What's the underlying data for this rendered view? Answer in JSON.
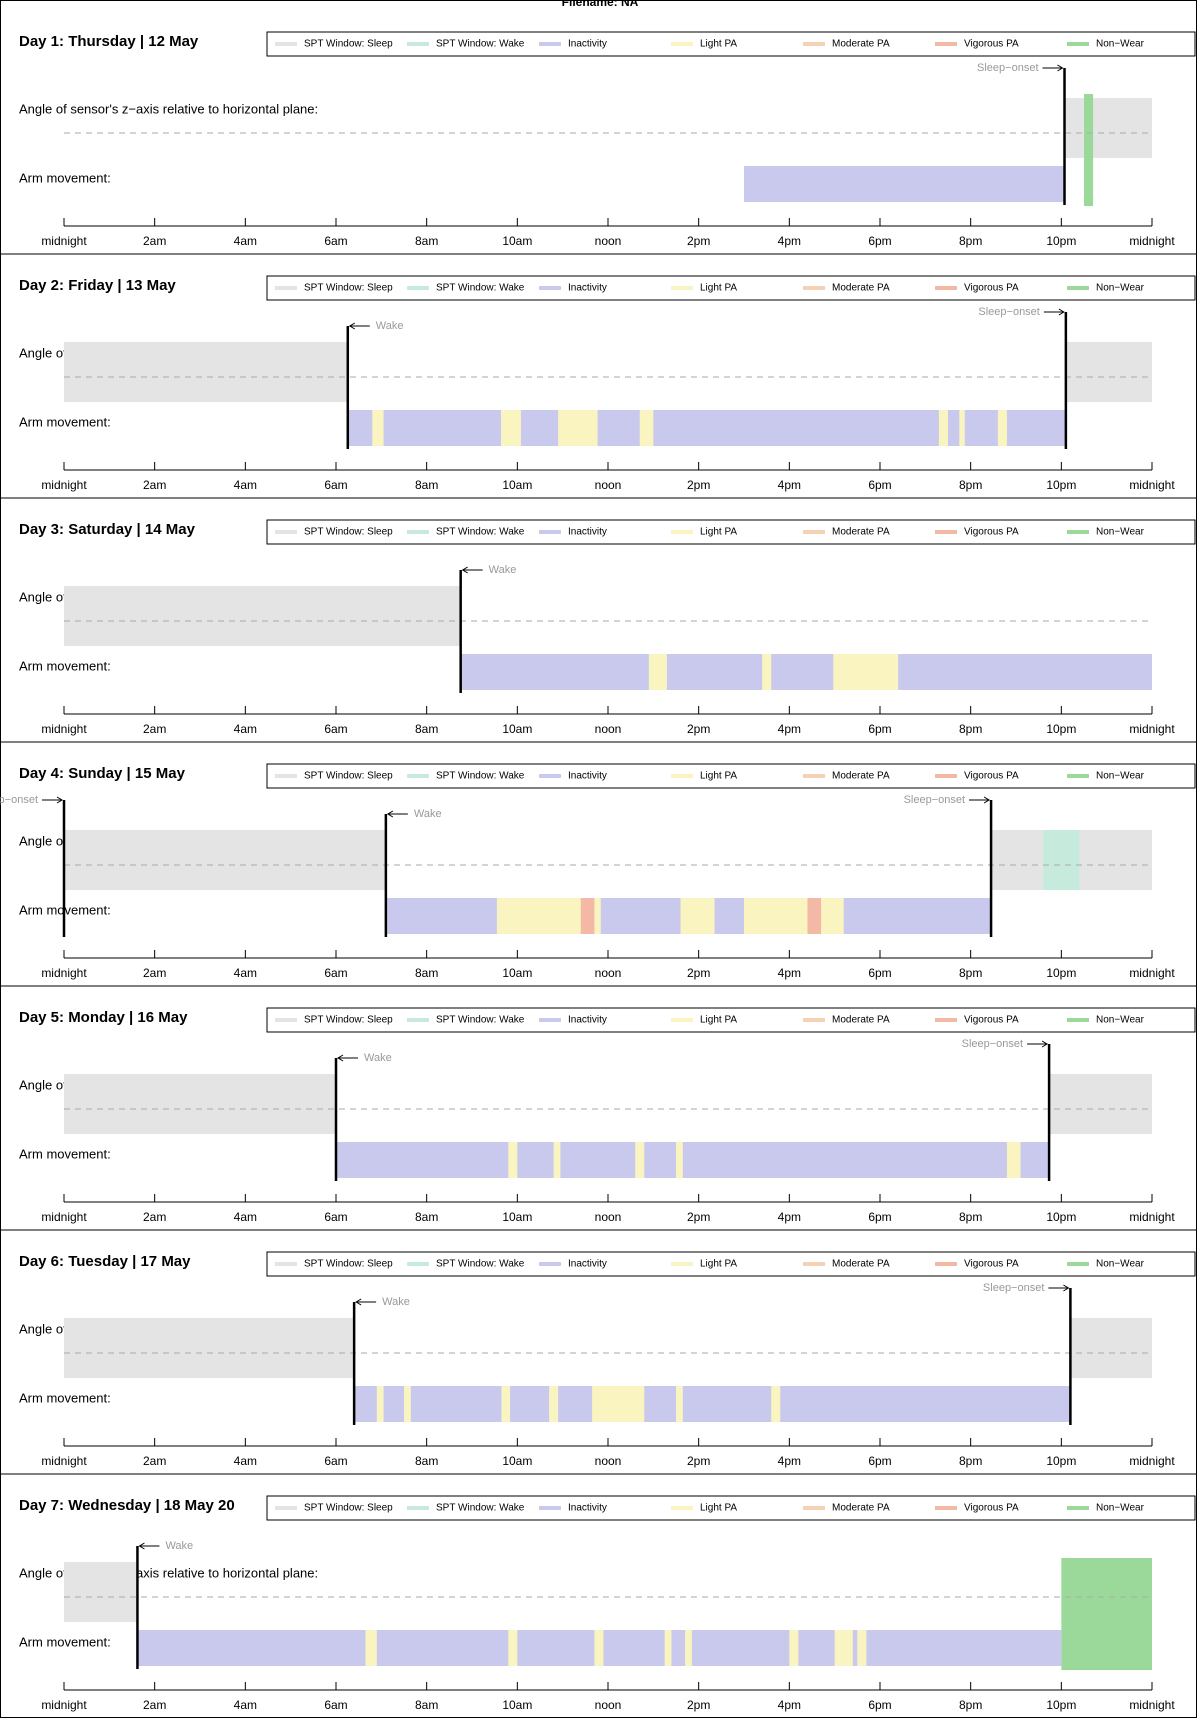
{
  "title": "Filename: NA",
  "angle_label": "Angle of sensor's z−axis relative to horizontal plane:",
  "movement_label": "Arm movement:",
  "legend": [
    {
      "name": "SPT Window: Sleep",
      "color": "#e4e4e4"
    },
    {
      "name": "SPT Window: Wake",
      "color": "#c6ebdd"
    },
    {
      "name": "Inactivity",
      "color": "#c9c9ee"
    },
    {
      "name": "Light PA",
      "color": "#faf4c0"
    },
    {
      "name": "Moderate PA",
      "color": "#f6d2b4"
    },
    {
      "name": "Vigorous PA",
      "color": "#f4b8a6"
    },
    {
      "name": "Non−Wear",
      "color": "#9bd99b"
    }
  ],
  "xlim": [
    0,
    24
  ],
  "xticks": [
    {
      "value": 0,
      "label": "midnight"
    },
    {
      "value": 2,
      "label": "2am"
    },
    {
      "value": 4,
      "label": "4am"
    },
    {
      "value": 6,
      "label": "6am"
    },
    {
      "value": 8,
      "label": "8am"
    },
    {
      "value": 10,
      "label": "10am"
    },
    {
      "value": 12,
      "label": "noon"
    },
    {
      "value": 14,
      "label": "2pm"
    },
    {
      "value": 16,
      "label": "4pm"
    },
    {
      "value": 18,
      "label": "6pm"
    },
    {
      "value": 20,
      "label": "8pm"
    },
    {
      "value": 22,
      "label": "10pm"
    },
    {
      "value": 24,
      "label": "midnight"
    }
  ],
  "chart_data": [
    {
      "type": "timeline",
      "title": "Day 1: Thursday | 12 May",
      "segments": [
        {
          "class": 2,
          "start": 15.0,
          "end": 22.07
        },
        {
          "class": 0,
          "start": 22.07,
          "end": 24
        },
        {
          "class": 6,
          "start": 22.5,
          "end": 22.7
        }
      ],
      "events": [
        {
          "label": "Sleep−onset",
          "x": 22.07
        }
      ]
    },
    {
      "type": "timeline",
      "title": "Day 2: Friday | 13 May",
      "segments": [
        {
          "class": 0,
          "start": 0,
          "end": 6.26
        },
        {
          "class": 2,
          "start": 6.26,
          "end": 22.1
        },
        {
          "class": 3,
          "start": 6.8,
          "end": 7.05
        },
        {
          "class": 3,
          "start": 9.64,
          "end": 10.08
        },
        {
          "class": 3,
          "start": 10.9,
          "end": 11.77
        },
        {
          "class": 3,
          "start": 12.7,
          "end": 13.0
        },
        {
          "class": 3,
          "start": 19.3,
          "end": 19.5
        },
        {
          "class": 3,
          "start": 19.75,
          "end": 19.87
        },
        {
          "class": 3,
          "start": 20.6,
          "end": 20.8
        },
        {
          "class": 0,
          "start": 22.1,
          "end": 24
        }
      ],
      "events": [
        {
          "label": "Wake",
          "x": 6.26
        },
        {
          "label": "Sleep−onset",
          "x": 22.1
        }
      ]
    },
    {
      "type": "timeline",
      "title": "Day 3: Saturday | 14 May",
      "segments": [
        {
          "class": 0,
          "start": 0,
          "end": 8.75
        },
        {
          "class": 2,
          "start": 8.75,
          "end": 24
        },
        {
          "class": 3,
          "start": 12.9,
          "end": 13.3
        },
        {
          "class": 3,
          "start": 15.4,
          "end": 15.6
        },
        {
          "class": 3,
          "start": 16.97,
          "end": 18.4
        }
      ],
      "events": [
        {
          "label": "Wake",
          "x": 8.75
        }
      ]
    },
    {
      "type": "timeline",
      "title": "Day 4: Sunday | 15 May",
      "segments": [
        {
          "class": 0,
          "start": 0,
          "end": 7.1
        },
        {
          "class": 2,
          "start": 7.1,
          "end": 20.45
        },
        {
          "class": 3,
          "start": 9.55,
          "end": 11.84
        },
        {
          "class": 5,
          "start": 11.4,
          "end": 11.7
        },
        {
          "class": 3,
          "start": 13.6,
          "end": 14.35
        },
        {
          "class": 3,
          "start": 15.0,
          "end": 17.2
        },
        {
          "class": 5,
          "start": 16.4,
          "end": 16.7
        },
        {
          "class": 0,
          "start": 20.45,
          "end": 24
        },
        {
          "class": 1,
          "start": 21.6,
          "end": 22.4
        }
      ],
      "events": [
        {
          "label": "Sleep−onset",
          "x": 0
        },
        {
          "label": "Wake",
          "x": 7.1
        },
        {
          "label": "Sleep−onset",
          "x": 20.45
        }
      ]
    },
    {
      "type": "timeline",
      "title": "Day 5: Monday | 16 May",
      "segments": [
        {
          "class": 0,
          "start": 0,
          "end": 6.0
        },
        {
          "class": 2,
          "start": 6.0,
          "end": 21.73
        },
        {
          "class": 3,
          "start": 9.8,
          "end": 10.0
        },
        {
          "class": 3,
          "start": 10.8,
          "end": 10.95
        },
        {
          "class": 3,
          "start": 12.6,
          "end": 12.8
        },
        {
          "class": 3,
          "start": 13.5,
          "end": 13.65
        },
        {
          "class": 3,
          "start": 20.8,
          "end": 21.1
        },
        {
          "class": 0,
          "start": 21.73,
          "end": 24
        }
      ],
      "events": [
        {
          "label": "Wake",
          "x": 6.0
        },
        {
          "label": "Sleep−onset",
          "x": 21.73
        }
      ]
    },
    {
      "type": "timeline",
      "title": "Day 6: Tuesday | 17 May",
      "segments": [
        {
          "class": 0,
          "start": 0,
          "end": 6.4
        },
        {
          "class": 2,
          "start": 6.4,
          "end": 22.2
        },
        {
          "class": 3,
          "start": 6.9,
          "end": 7.05
        },
        {
          "class": 3,
          "start": 7.5,
          "end": 7.65
        },
        {
          "class": 3,
          "start": 9.65,
          "end": 9.84
        },
        {
          "class": 3,
          "start": 10.7,
          "end": 10.9
        },
        {
          "class": 3,
          "start": 11.65,
          "end": 12.8
        },
        {
          "class": 3,
          "start": 13.5,
          "end": 13.65
        },
        {
          "class": 3,
          "start": 15.6,
          "end": 15.8
        },
        {
          "class": 0,
          "start": 22.2,
          "end": 24
        }
      ],
      "events": [
        {
          "label": "Wake",
          "x": 6.4
        },
        {
          "label": "Sleep−onset",
          "x": 22.2
        }
      ]
    },
    {
      "type": "timeline",
      "title": "Day 7: Wednesday | 18 May 20",
      "segments": [
        {
          "class": 0,
          "start": 0,
          "end": 1.62
        },
        {
          "class": 2,
          "start": 1.62,
          "end": 22.0
        },
        {
          "class": 3,
          "start": 6.65,
          "end": 6.9
        },
        {
          "class": 3,
          "start": 9.8,
          "end": 10.0
        },
        {
          "class": 3,
          "start": 11.7,
          "end": 11.9
        },
        {
          "class": 3,
          "start": 13.25,
          "end": 13.4
        },
        {
          "class": 3,
          "start": 13.7,
          "end": 13.85
        },
        {
          "class": 3,
          "start": 16.0,
          "end": 16.2
        },
        {
          "class": 3,
          "start": 17.0,
          "end": 17.4
        },
        {
          "class": 3,
          "start": 17.5,
          "end": 17.7
        },
        {
          "class": 6,
          "start": 22.0,
          "end": 24
        }
      ],
      "events": [
        {
          "label": "Wake",
          "x": 1.62
        }
      ]
    }
  ]
}
